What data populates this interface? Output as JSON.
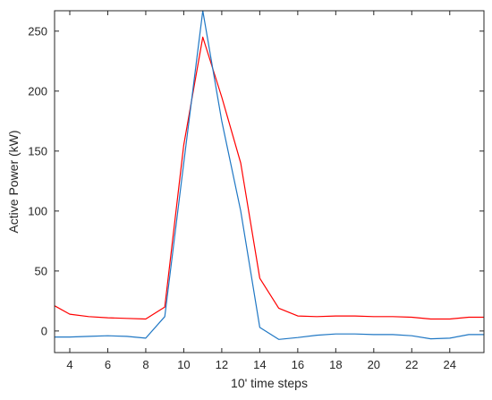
{
  "chart_data": {
    "type": "line",
    "title": "",
    "xlabel": "10' time steps",
    "ylabel": "Active Power (kW)",
    "xlim": [
      3.2,
      25.8
    ],
    "ylim": [
      -18,
      267
    ],
    "xticks": [
      4,
      6,
      8,
      10,
      12,
      14,
      16,
      18,
      20,
      22,
      24
    ],
    "yticks": [
      0,
      50,
      100,
      150,
      200,
      250
    ],
    "grid": false,
    "legend": "none",
    "series": [
      {
        "color": "#ff0000",
        "x": [
          3.2,
          4,
          5,
          6,
          7,
          8,
          9,
          10,
          11,
          12,
          13,
          14,
          15,
          16,
          17,
          18,
          19,
          20,
          21,
          22,
          23,
          24,
          25,
          25.8
        ],
        "y": [
          21,
          14,
          12,
          11,
          10.5,
          10,
          20,
          155,
          245,
          195,
          140,
          44,
          19,
          12.5,
          12,
          12.5,
          12.5,
          12,
          12,
          11.5,
          10,
          10,
          11.5,
          11.5
        ]
      },
      {
        "color": "#1f77c4",
        "x": [
          3.2,
          4,
          5,
          6,
          7,
          8,
          9,
          10,
          11,
          12,
          13,
          14,
          15,
          16,
          17,
          18,
          19,
          20,
          21,
          22,
          23,
          24,
          25,
          25.8
        ],
        "y": [
          -5,
          -5,
          -4.5,
          -4,
          -4.5,
          -6,
          12,
          140,
          267,
          175,
          100,
          3,
          -7,
          -5.5,
          -3.5,
          -2.5,
          -2.5,
          -3,
          -3,
          -4,
          -6.5,
          -6,
          -3,
          -3
        ]
      }
    ]
  }
}
